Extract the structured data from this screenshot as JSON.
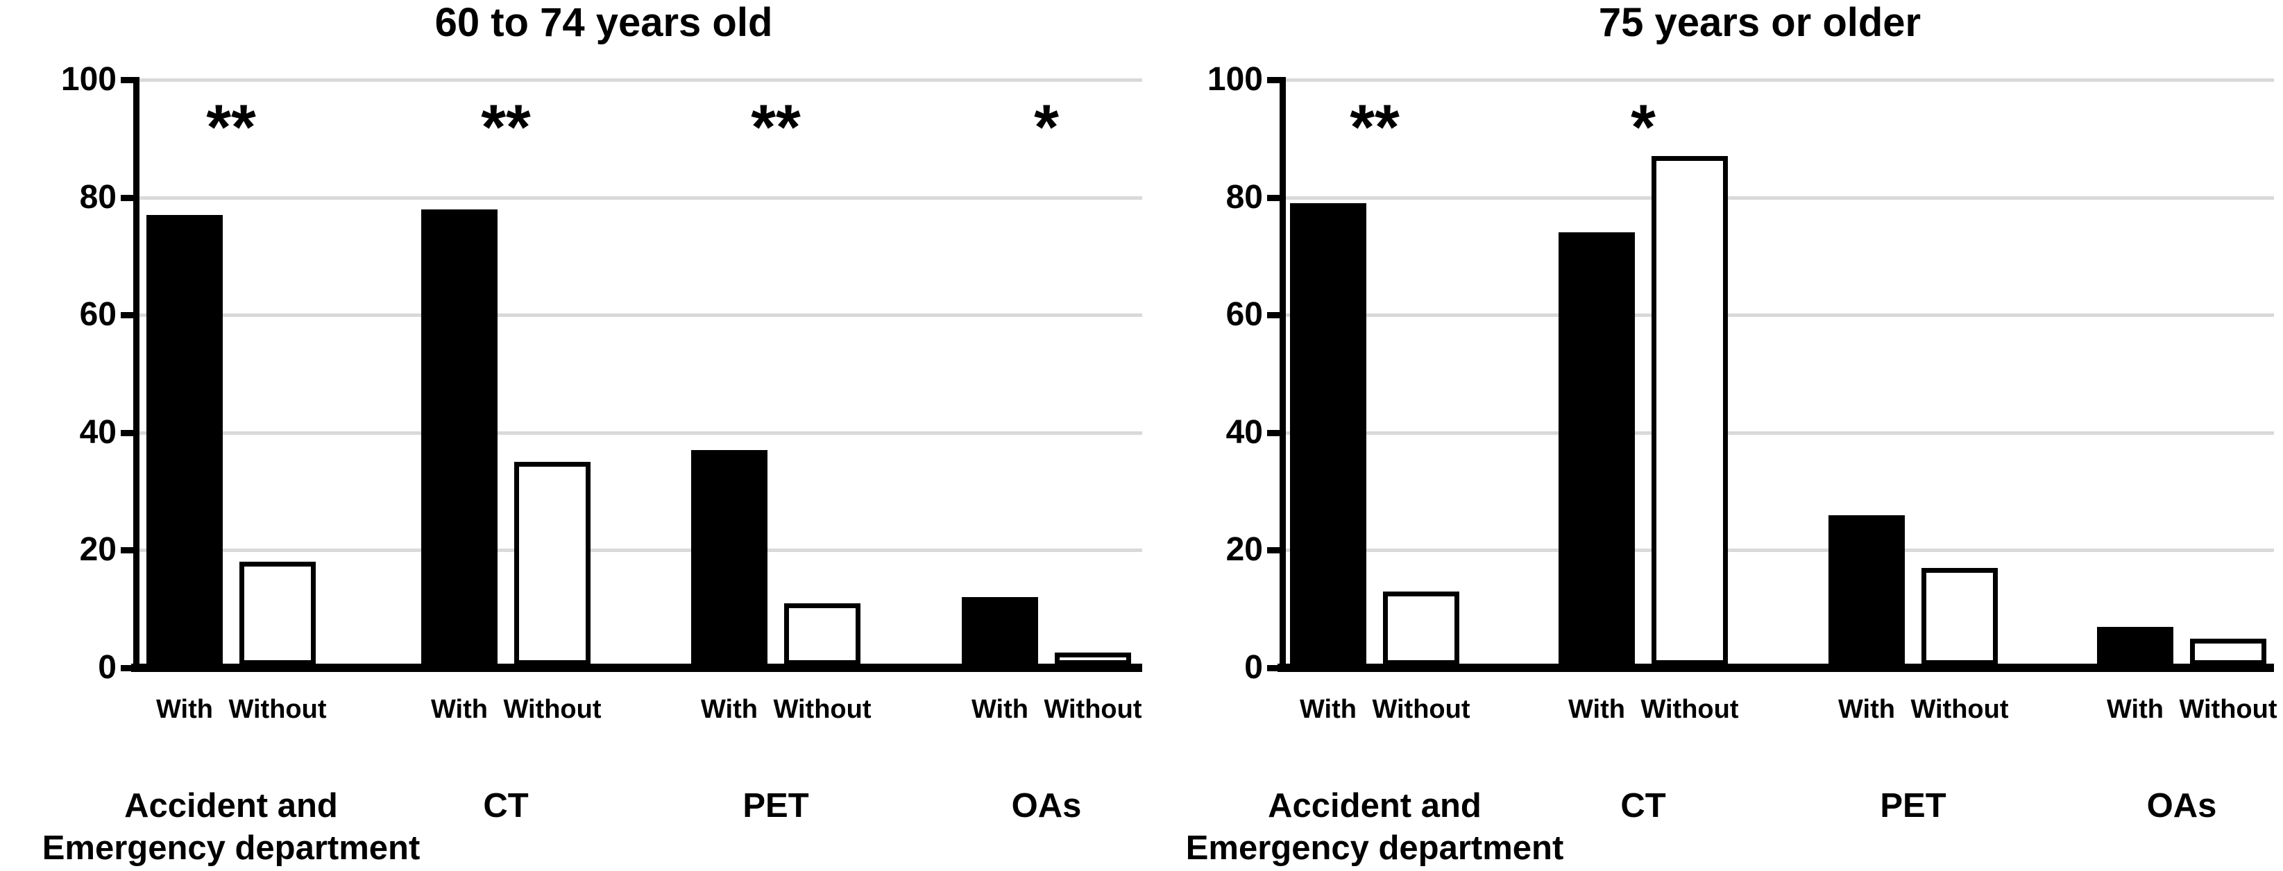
{
  "figure": {
    "background": "#ffffff",
    "colors": {
      "bar_with_fill": "#000000",
      "bar_without_fill": "#ffffff",
      "bar_outline": "#000000",
      "gridline": "#d9d9d9",
      "axis": "#000000",
      "text": "#000000"
    }
  },
  "chart_data": [
    {
      "type": "bar",
      "title": "60 to 74 years old",
      "categories": [
        "Accident and Emergency department",
        "CT",
        "PET",
        "OAs"
      ],
      "category_label_lines": [
        [
          "Accident and",
          "Emergency department"
        ],
        [
          "CT"
        ],
        [
          "PET"
        ],
        [
          "OAs"
        ]
      ],
      "bar_labels": [
        "With",
        "Without"
      ],
      "series": [
        {
          "name": "With",
          "values": [
            77,
            78,
            37,
            12
          ]
        },
        {
          "name": "Without",
          "values": [
            18,
            35,
            11,
            2
          ]
        }
      ],
      "significance": [
        "**",
        "**",
        "**",
        "*"
      ],
      "ylim": [
        0,
        100
      ],
      "yticks": [
        0,
        20,
        40,
        60,
        80,
        100
      ],
      "grid": true,
      "legend": "none"
    },
    {
      "type": "bar",
      "title": "75 years or older",
      "categories": [
        "Accident and Emergency department",
        "CT",
        "PET",
        "OAs"
      ],
      "category_label_lines": [
        [
          "Accident and",
          "Emergency department"
        ],
        [
          "CT"
        ],
        [
          "PET"
        ],
        [
          "OAs"
        ]
      ],
      "bar_labels": [
        "With",
        "Without"
      ],
      "series": [
        {
          "name": "With",
          "values": [
            79,
            74,
            26,
            7
          ]
        },
        {
          "name": "Without",
          "values": [
            13,
            87,
            17,
            5
          ]
        }
      ],
      "significance": [
        "**",
        "*",
        "",
        ""
      ],
      "ylim": [
        0,
        100
      ],
      "yticks": [
        0,
        20,
        40,
        60,
        80,
        100
      ],
      "grid": true,
      "legend": "none"
    }
  ]
}
